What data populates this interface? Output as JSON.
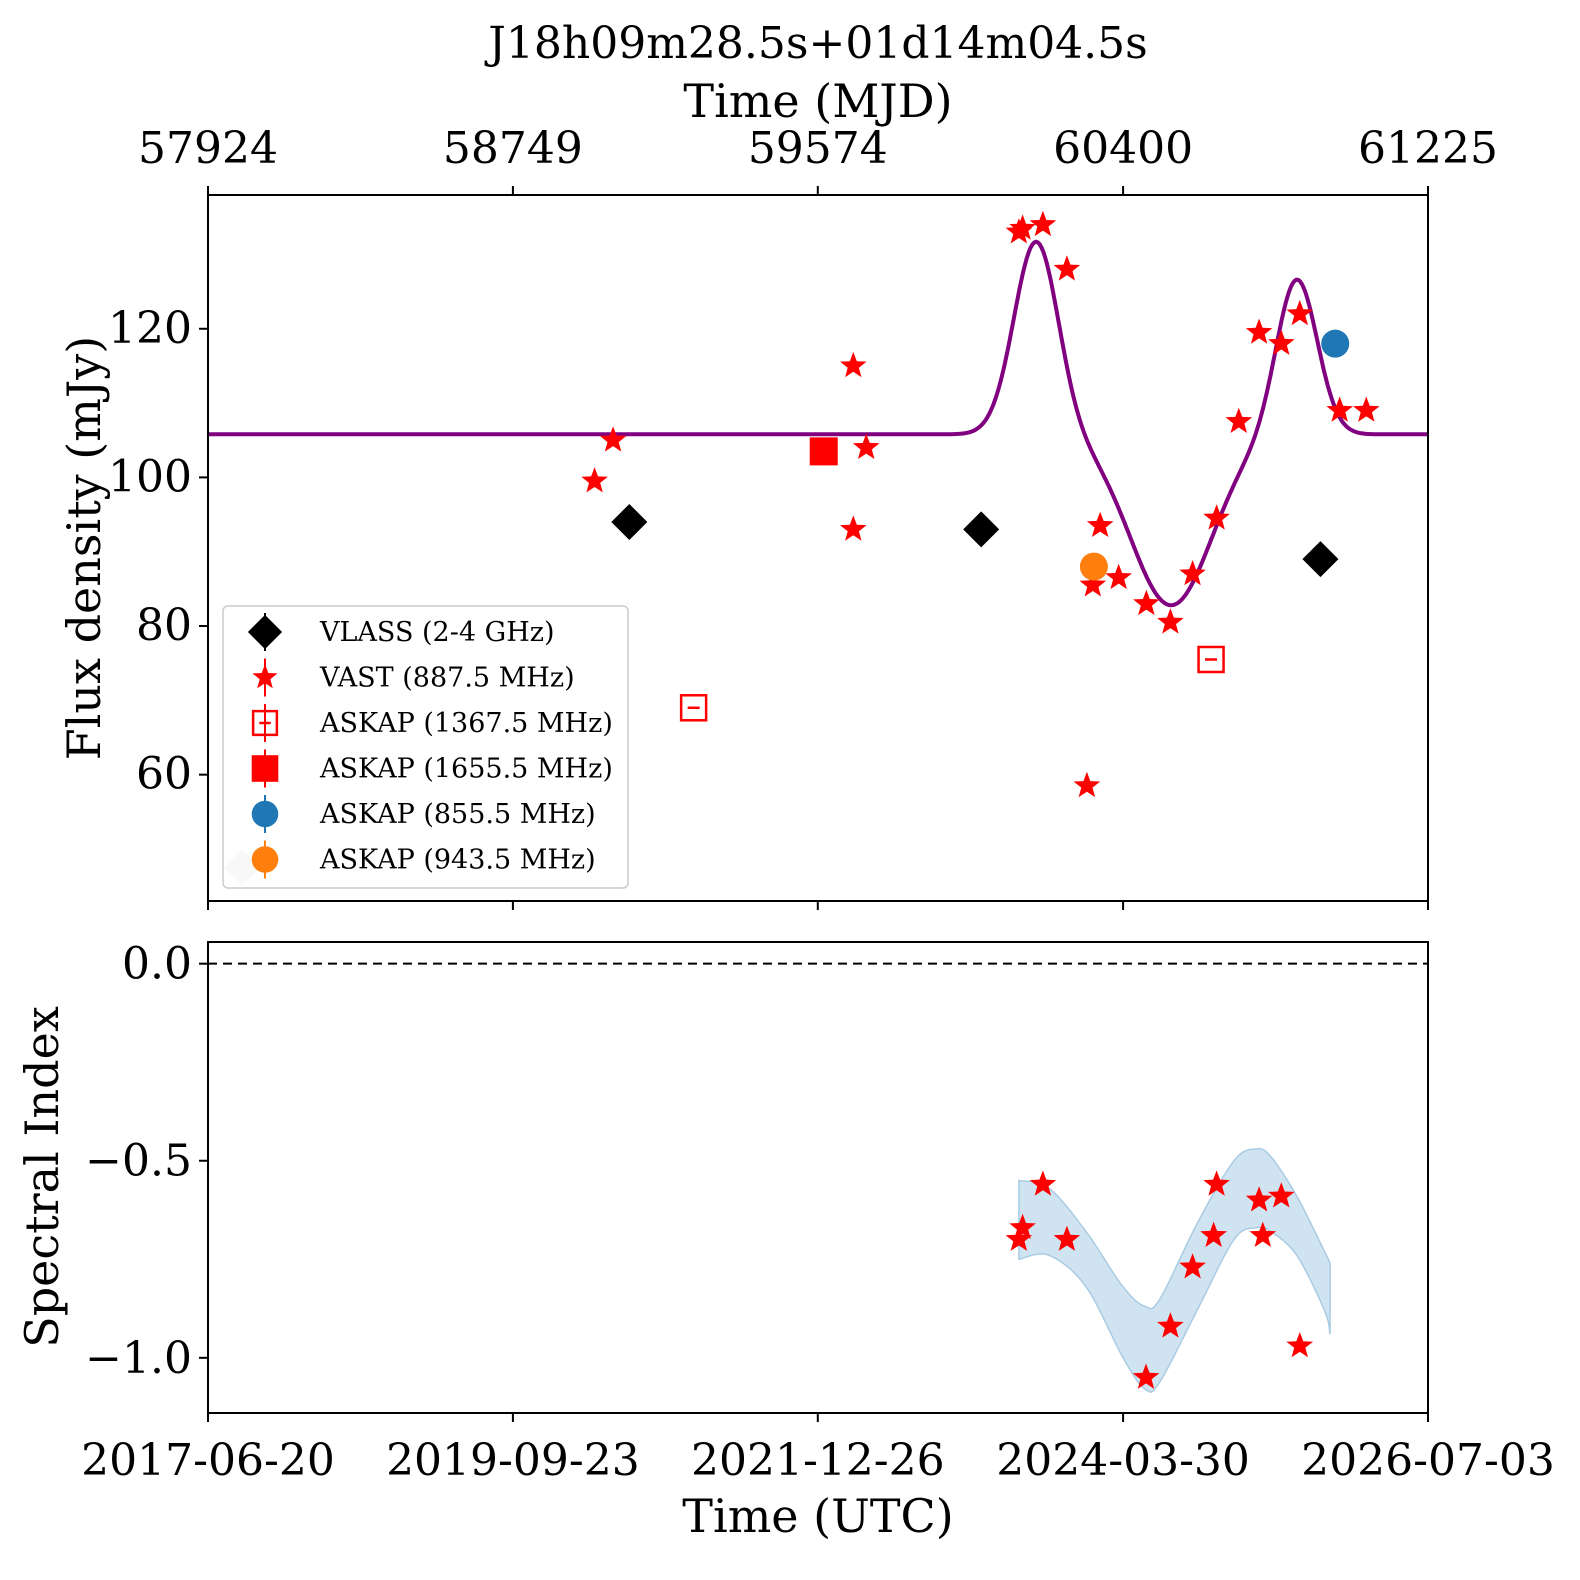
{
  "chart_data": [
    {
      "type": "scatter",
      "title": "J18h09m28.5s+01d14m04.5s",
      "top_axis": {
        "label": "Time (MJD)",
        "ticks": [
          57924,
          58749,
          59574,
          60400,
          61225
        ]
      },
      "xlim": [
        57924,
        61225
      ],
      "ylim": [
        43,
        138
      ],
      "ylabel": "Flux density (mJy)",
      "yticks": [
        60,
        80,
        100,
        120
      ],
      "grid": false,
      "legend_position": "lower-left",
      "series": [
        {
          "name": "VLASS (2-4 GHz)",
          "marker": "diamond",
          "color": "#000000",
          "points": [
            [
              59064,
              94.0
            ],
            [
              60016,
              93.0
            ],
            [
              60934,
              89.0
            ]
          ]
        },
        {
          "name": "VAST (887.5 MHz)",
          "marker": "star",
          "color": "#ff0000",
          "points": [
            [
              58970,
              99.5
            ],
            [
              59020,
              105.0
            ],
            [
              59670,
              115.0
            ],
            [
              59670,
              93.0
            ],
            [
              59705,
              104.0
            ],
            [
              60118,
              133.0
            ],
            [
              60128,
              133.5
            ],
            [
              60183,
              134.0
            ],
            [
              60248,
              128.0
            ],
            [
              60302,
              58.5
            ],
            [
              60338,
              93.5
            ],
            [
              60318,
              85.5
            ],
            [
              60388,
              86.5
            ],
            [
              60463,
              83.0
            ],
            [
              60528,
              80.5
            ],
            [
              60588,
              87.0
            ],
            [
              60653,
              94.5
            ],
            [
              60713,
              107.5
            ],
            [
              60768,
              119.5
            ],
            [
              60828,
              118.0
            ],
            [
              60878,
              122.0
            ],
            [
              60986,
              109.0
            ],
            [
              61058,
              109.0
            ]
          ]
        },
        {
          "name": "ASKAP (1367.5 MHz)",
          "marker": "square-open",
          "color": "#ff0000",
          "points": [
            [
              59238,
              69.0
            ],
            [
              60638,
              75.5
            ]
          ]
        },
        {
          "name": "ASKAP (1655.5 MHz)",
          "marker": "square",
          "color": "#ff0000",
          "points": [
            [
              59590,
              103.5
            ]
          ]
        },
        {
          "name": "ASKAP (855.5 MHz)",
          "marker": "circle",
          "color": "#1f77b4",
          "points": [
            [
              60974,
              118.0
            ]
          ]
        },
        {
          "name": "ASKAP (943.5 MHz)",
          "marker": "circle",
          "color": "#ff7f0e",
          "points": [
            [
              60321,
              88.0
            ]
          ]
        },
        {
          "name": "",
          "marker": "diamond",
          "color": "#cccccc",
          "points": [
            [
              58016,
              47.5
            ]
          ]
        }
      ],
      "model_curve": {
        "color": "#800080",
        "baseline": 105.8,
        "components": [
          {
            "center": 60165,
            "amplitude": 26,
            "sigma": 60
          },
          {
            "center": 60530,
            "amplitude": -23,
            "sigma": 110
          },
          {
            "center": 60870,
            "amplitude": 21,
            "sigma": 55
          }
        ]
      }
    },
    {
      "type": "scatter",
      "xlim": [
        57924,
        61225
      ],
      "ylim": [
        -1.14,
        0.055
      ],
      "ylabel": "Spectral Index",
      "xlabel": "Time (UTC)",
      "yticks": [
        0.0,
        -0.5,
        -1.0
      ],
      "ytick_labels": [
        "0.0",
        "−0.5",
        "−1.0"
      ],
      "xticks": [
        57924,
        58749,
        59574,
        60400,
        61225
      ],
      "xtick_labels": [
        "2017-06-20",
        "2019-09-23",
        "2021-12-26",
        "2024-03-30",
        "2026-07-03"
      ],
      "reference_line": {
        "y": 0.0,
        "style": "dashed",
        "color": "#000000"
      },
      "band": {
        "color": "#a9cce3",
        "x": [
          60118,
          60200,
          60300,
          60400,
          60460,
          60500,
          60600,
          60700,
          60760,
          60800,
          60870,
          60945,
          60960
        ],
        "upper": [
          -0.55,
          -0.57,
          -0.68,
          -0.82,
          -0.87,
          -0.85,
          -0.66,
          -0.5,
          -0.47,
          -0.49,
          -0.59,
          -0.73,
          -0.76
        ],
        "lower": [
          -0.75,
          -0.74,
          -0.82,
          -1.0,
          -1.08,
          -1.06,
          -0.88,
          -0.7,
          -0.67,
          -0.68,
          -0.74,
          -0.88,
          -0.94
        ]
      },
      "series": [
        {
          "name": "VAST (887.5 MHz)",
          "marker": "star",
          "color": "#ff0000",
          "points": [
            [
              60118,
              -0.7
            ],
            [
              60128,
              -0.67
            ],
            [
              60183,
              -0.56
            ],
            [
              60248,
              -0.7
            ],
            [
              60462,
              -1.05
            ],
            [
              60528,
              -0.92
            ],
            [
              60588,
              -0.77
            ],
            [
              60645,
              -0.69
            ],
            [
              60653,
              -0.56
            ],
            [
              60768,
              -0.6
            ],
            [
              60778,
              -0.69
            ],
            [
              60828,
              -0.59
            ],
            [
              60878,
              -0.97
            ]
          ]
        }
      ]
    }
  ]
}
